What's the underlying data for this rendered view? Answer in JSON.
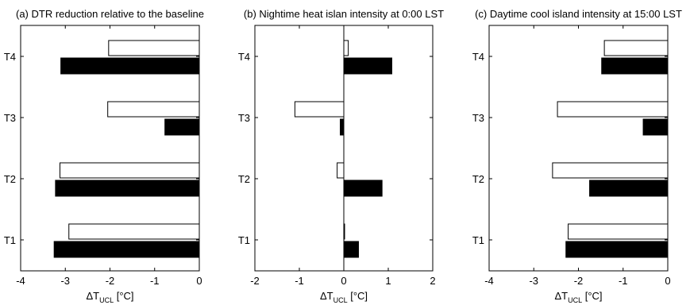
{
  "chart_data": [
    {
      "type": "bar",
      "orientation": "horizontal",
      "title": "(a) DTR reduction relative to the baseline",
      "categories": [
        "T1",
        "T2",
        "T3",
        "T4"
      ],
      "series": [
        {
          "style": "white",
          "values": [
            -2.92,
            -3.12,
            -2.05,
            -2.03
          ]
        },
        {
          "style": "black",
          "values": [
            -3.25,
            -3.22,
            -0.77,
            -3.1
          ]
        }
      ],
      "xlabel": {
        "main": "ΔT",
        "sub": "UCL",
        "unit": " [°C]"
      },
      "xlim": [
        -4,
        0
      ],
      "xticks": [
        "-4",
        "-3",
        "-2",
        "-1",
        "0"
      ],
      "xtick_values": [
        -4,
        -3,
        -2,
        -1,
        0
      ]
    },
    {
      "type": "bar",
      "orientation": "horizontal",
      "title": "(b) Nightime heat islan intensity at 0:00 LST",
      "categories": [
        "T1",
        "T2",
        "T3",
        "T4"
      ],
      "series": [
        {
          "style": "white",
          "values": [
            0.0,
            -0.15,
            -1.1,
            0.1
          ]
        },
        {
          "style": "black",
          "values": [
            0.33,
            0.86,
            -0.08,
            1.08
          ]
        }
      ],
      "xlabel": {
        "main": "ΔT",
        "sub": "UCL",
        "unit": " [°C]"
      },
      "xlim": [
        -2,
        2
      ],
      "xticks": [
        "-2",
        "-1",
        "0",
        "1",
        "2"
      ],
      "xtick_values": [
        -2,
        -1,
        0,
        1,
        2
      ]
    },
    {
      "type": "bar",
      "orientation": "horizontal",
      "title": "(c) Daytime cool island intensity at 15:00 LST",
      "categories": [
        "T1",
        "T2",
        "T3",
        "T4"
      ],
      "series": [
        {
          "style": "white",
          "values": [
            -2.23,
            -2.58,
            -2.47,
            -1.42
          ]
        },
        {
          "style": "black",
          "values": [
            -2.28,
            -1.75,
            -0.55,
            -1.48
          ]
        }
      ],
      "xlabel": {
        "main": "ΔT",
        "sub": "UCL",
        "unit": " [°C]"
      },
      "xlim": [
        -4,
        0
      ],
      "xticks": [
        "-4",
        "-3",
        "-2",
        "-1",
        "0"
      ],
      "xtick_values": [
        -4,
        -3,
        -2,
        -1,
        0
      ]
    }
  ]
}
